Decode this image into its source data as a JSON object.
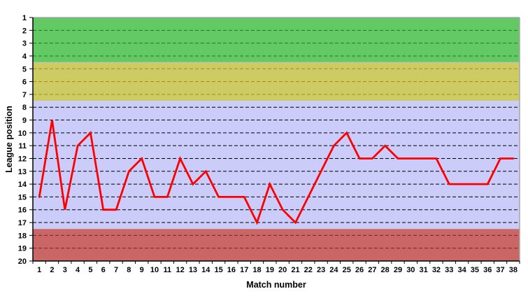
{
  "chart_data": {
    "type": "line",
    "title": "",
    "xlabel": "Match number",
    "ylabel": "League position",
    "x": [
      1,
      2,
      3,
      4,
      5,
      6,
      7,
      8,
      9,
      10,
      11,
      12,
      13,
      14,
      15,
      16,
      17,
      18,
      19,
      20,
      21,
      22,
      23,
      24,
      25,
      26,
      27,
      28,
      29,
      30,
      31,
      32,
      33,
      34,
      35,
      36,
      37,
      38
    ],
    "values": [
      15,
      9,
      16,
      11,
      10,
      16,
      16,
      13,
      12,
      15,
      15,
      12,
      14,
      13,
      15,
      15,
      15,
      17,
      14,
      16,
      17,
      15,
      13,
      11,
      10,
      12,
      12,
      11,
      12,
      12,
      12,
      12,
      14,
      14,
      14,
      14,
      12,
      12
    ],
    "y_tick_labels": [
      "1",
      "2",
      "3",
      "4",
      "5",
      "6",
      "7",
      "8",
      "9",
      "10",
      "11",
      "12",
      "13",
      "14",
      "15",
      "16",
      "17",
      "18",
      "19",
      "20"
    ],
    "ylim": [
      1,
      20
    ],
    "y_axis_inverted": true,
    "x_axis_range": [
      0.5,
      38.5
    ],
    "grid": "horizontal dashed lines at every integer position",
    "legend": "none",
    "series": [
      {
        "name": "league-position",
        "color": "#FF0000",
        "stroke_width": 2.8
      }
    ],
    "bands": [
      {
        "name": "green-zone",
        "from_position": 1,
        "to_position": 4.5,
        "fill": "#63C964",
        "gridline_color": "#1E7B1E"
      },
      {
        "name": "gold-zone",
        "from_position": 4.5,
        "to_position": 7.5,
        "fill": "#CDCB63",
        "gridline_color": "#B8860B"
      },
      {
        "name": "lavender-zone",
        "from_position": 7.5,
        "to_position": 17.5,
        "fill": "#CCCCFA",
        "gridline_color": "#000000"
      },
      {
        "name": "red-zone",
        "from_position": 17.5,
        "to_position": 20,
        "fill": "#C96666",
        "gridline_color": "#8B1B1B"
      }
    ],
    "colors": {
      "plot_border_gray": "#A6A6A6",
      "axis_black": "#000000",
      "band_separator": "#C0C8C0",
      "background": "#FFFFFF"
    }
  }
}
